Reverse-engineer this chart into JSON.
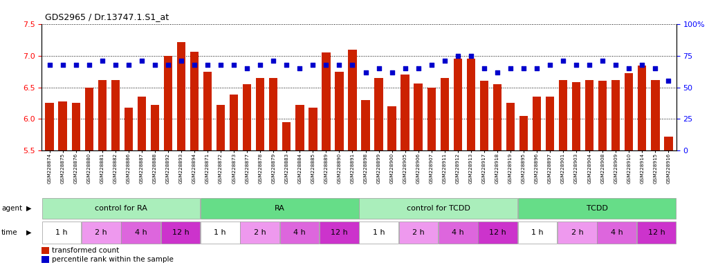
{
  "title": "GDS2965 / Dr.13747.1.S1_at",
  "samples": [
    "GSM228874",
    "GSM228875",
    "GSM228876",
    "GSM228880",
    "GSM228881",
    "GSM228882",
    "GSM228886",
    "GSM228887",
    "GSM228888",
    "GSM228892",
    "GSM228893",
    "GSM228894",
    "GSM228871",
    "GSM228872",
    "GSM228873",
    "GSM228877",
    "GSM228878",
    "GSM228879",
    "GSM228883",
    "GSM228884",
    "GSM228885",
    "GSM228889",
    "GSM228890",
    "GSM228891",
    "GSM228898",
    "GSM228899",
    "GSM228900",
    "GSM228905",
    "GSM228906",
    "GSM228907",
    "GSM228911",
    "GSM228912",
    "GSM228913",
    "GSM228917",
    "GSM228918",
    "GSM228919",
    "GSM228895",
    "GSM228896",
    "GSM228897",
    "GSM228901",
    "GSM228903",
    "GSM228904",
    "GSM228908",
    "GSM228909",
    "GSM228910",
    "GSM228914",
    "GSM228915",
    "GSM228916"
  ],
  "bar_values": [
    6.25,
    6.28,
    6.25,
    6.49,
    6.62,
    6.62,
    6.18,
    6.35,
    6.22,
    7.0,
    7.22,
    7.07,
    6.75,
    6.22,
    6.38,
    6.55,
    6.65,
    6.65,
    5.95,
    6.22,
    6.18,
    7.05,
    6.75,
    7.1,
    6.3,
    6.65,
    6.2,
    6.7,
    6.56,
    6.5,
    6.65,
    6.95,
    6.95,
    6.6,
    6.55,
    6.25,
    6.05,
    6.35,
    6.35,
    6.62,
    6.58,
    6.62,
    6.6,
    6.62,
    6.72,
    6.85,
    6.62,
    5.72
  ],
  "percentile_values": [
    68,
    68,
    68,
    68,
    71,
    68,
    68,
    71,
    68,
    68,
    71,
    68,
    68,
    68,
    68,
    65,
    68,
    71,
    68,
    65,
    68,
    68,
    68,
    68,
    62,
    65,
    62,
    65,
    65,
    68,
    71,
    75,
    75,
    65,
    62,
    65,
    65,
    65,
    68,
    71,
    68,
    68,
    71,
    68,
    65,
    68,
    65,
    55
  ],
  "ymin": 5.5,
  "ymax": 7.5,
  "yticks_left": [
    5.5,
    6.0,
    6.5,
    7.0,
    7.5
  ],
  "yticks_right": [
    0,
    25,
    50,
    75,
    100
  ],
  "bar_color": "#cc2200",
  "dot_color": "#0000cc",
  "background_color": "#ffffff",
  "agent_groups": [
    {
      "label": "control for RA",
      "start": 0,
      "end": 11,
      "color": "#aaeebb"
    },
    {
      "label": "RA",
      "start": 12,
      "end": 23,
      "color": "#66dd88"
    },
    {
      "label": "control for TCDD",
      "start": 24,
      "end": 35,
      "color": "#aaeebb"
    },
    {
      "label": "TCDD",
      "start": 36,
      "end": 47,
      "color": "#66dd88"
    }
  ],
  "time_groups": [
    {
      "label": "1 h",
      "color": "#ffffff",
      "start": 0,
      "end": 2
    },
    {
      "label": "2 h",
      "color": "#ee99ee",
      "start": 3,
      "end": 5
    },
    {
      "label": "4 h",
      "color": "#dd66dd",
      "start": 6,
      "end": 8
    },
    {
      "label": "12 h",
      "color": "#cc33cc",
      "start": 9,
      "end": 11
    },
    {
      "label": "1 h",
      "color": "#ffffff",
      "start": 12,
      "end": 14
    },
    {
      "label": "2 h",
      "color": "#ee99ee",
      "start": 15,
      "end": 17
    },
    {
      "label": "4 h",
      "color": "#dd66dd",
      "start": 18,
      "end": 20
    },
    {
      "label": "12 h",
      "color": "#cc33cc",
      "start": 21,
      "end": 23
    },
    {
      "label": "1 h",
      "color": "#ffffff",
      "start": 24,
      "end": 26
    },
    {
      "label": "2 h",
      "color": "#ee99ee",
      "start": 27,
      "end": 29
    },
    {
      "label": "4 h",
      "color": "#dd66dd",
      "start": 30,
      "end": 32
    },
    {
      "label": "12 h",
      "color": "#cc33cc",
      "start": 33,
      "end": 35
    },
    {
      "label": "1 h",
      "color": "#ffffff",
      "start": 36,
      "end": 38
    },
    {
      "label": "2 h",
      "color": "#ee99ee",
      "start": 39,
      "end": 41
    },
    {
      "label": "4 h",
      "color": "#dd66dd",
      "start": 42,
      "end": 44
    },
    {
      "label": "12 h",
      "color": "#cc33cc",
      "start": 45,
      "end": 47
    }
  ],
  "legend_bar_label": "transformed count",
  "legend_dot_label": "percentile rank within the sample"
}
